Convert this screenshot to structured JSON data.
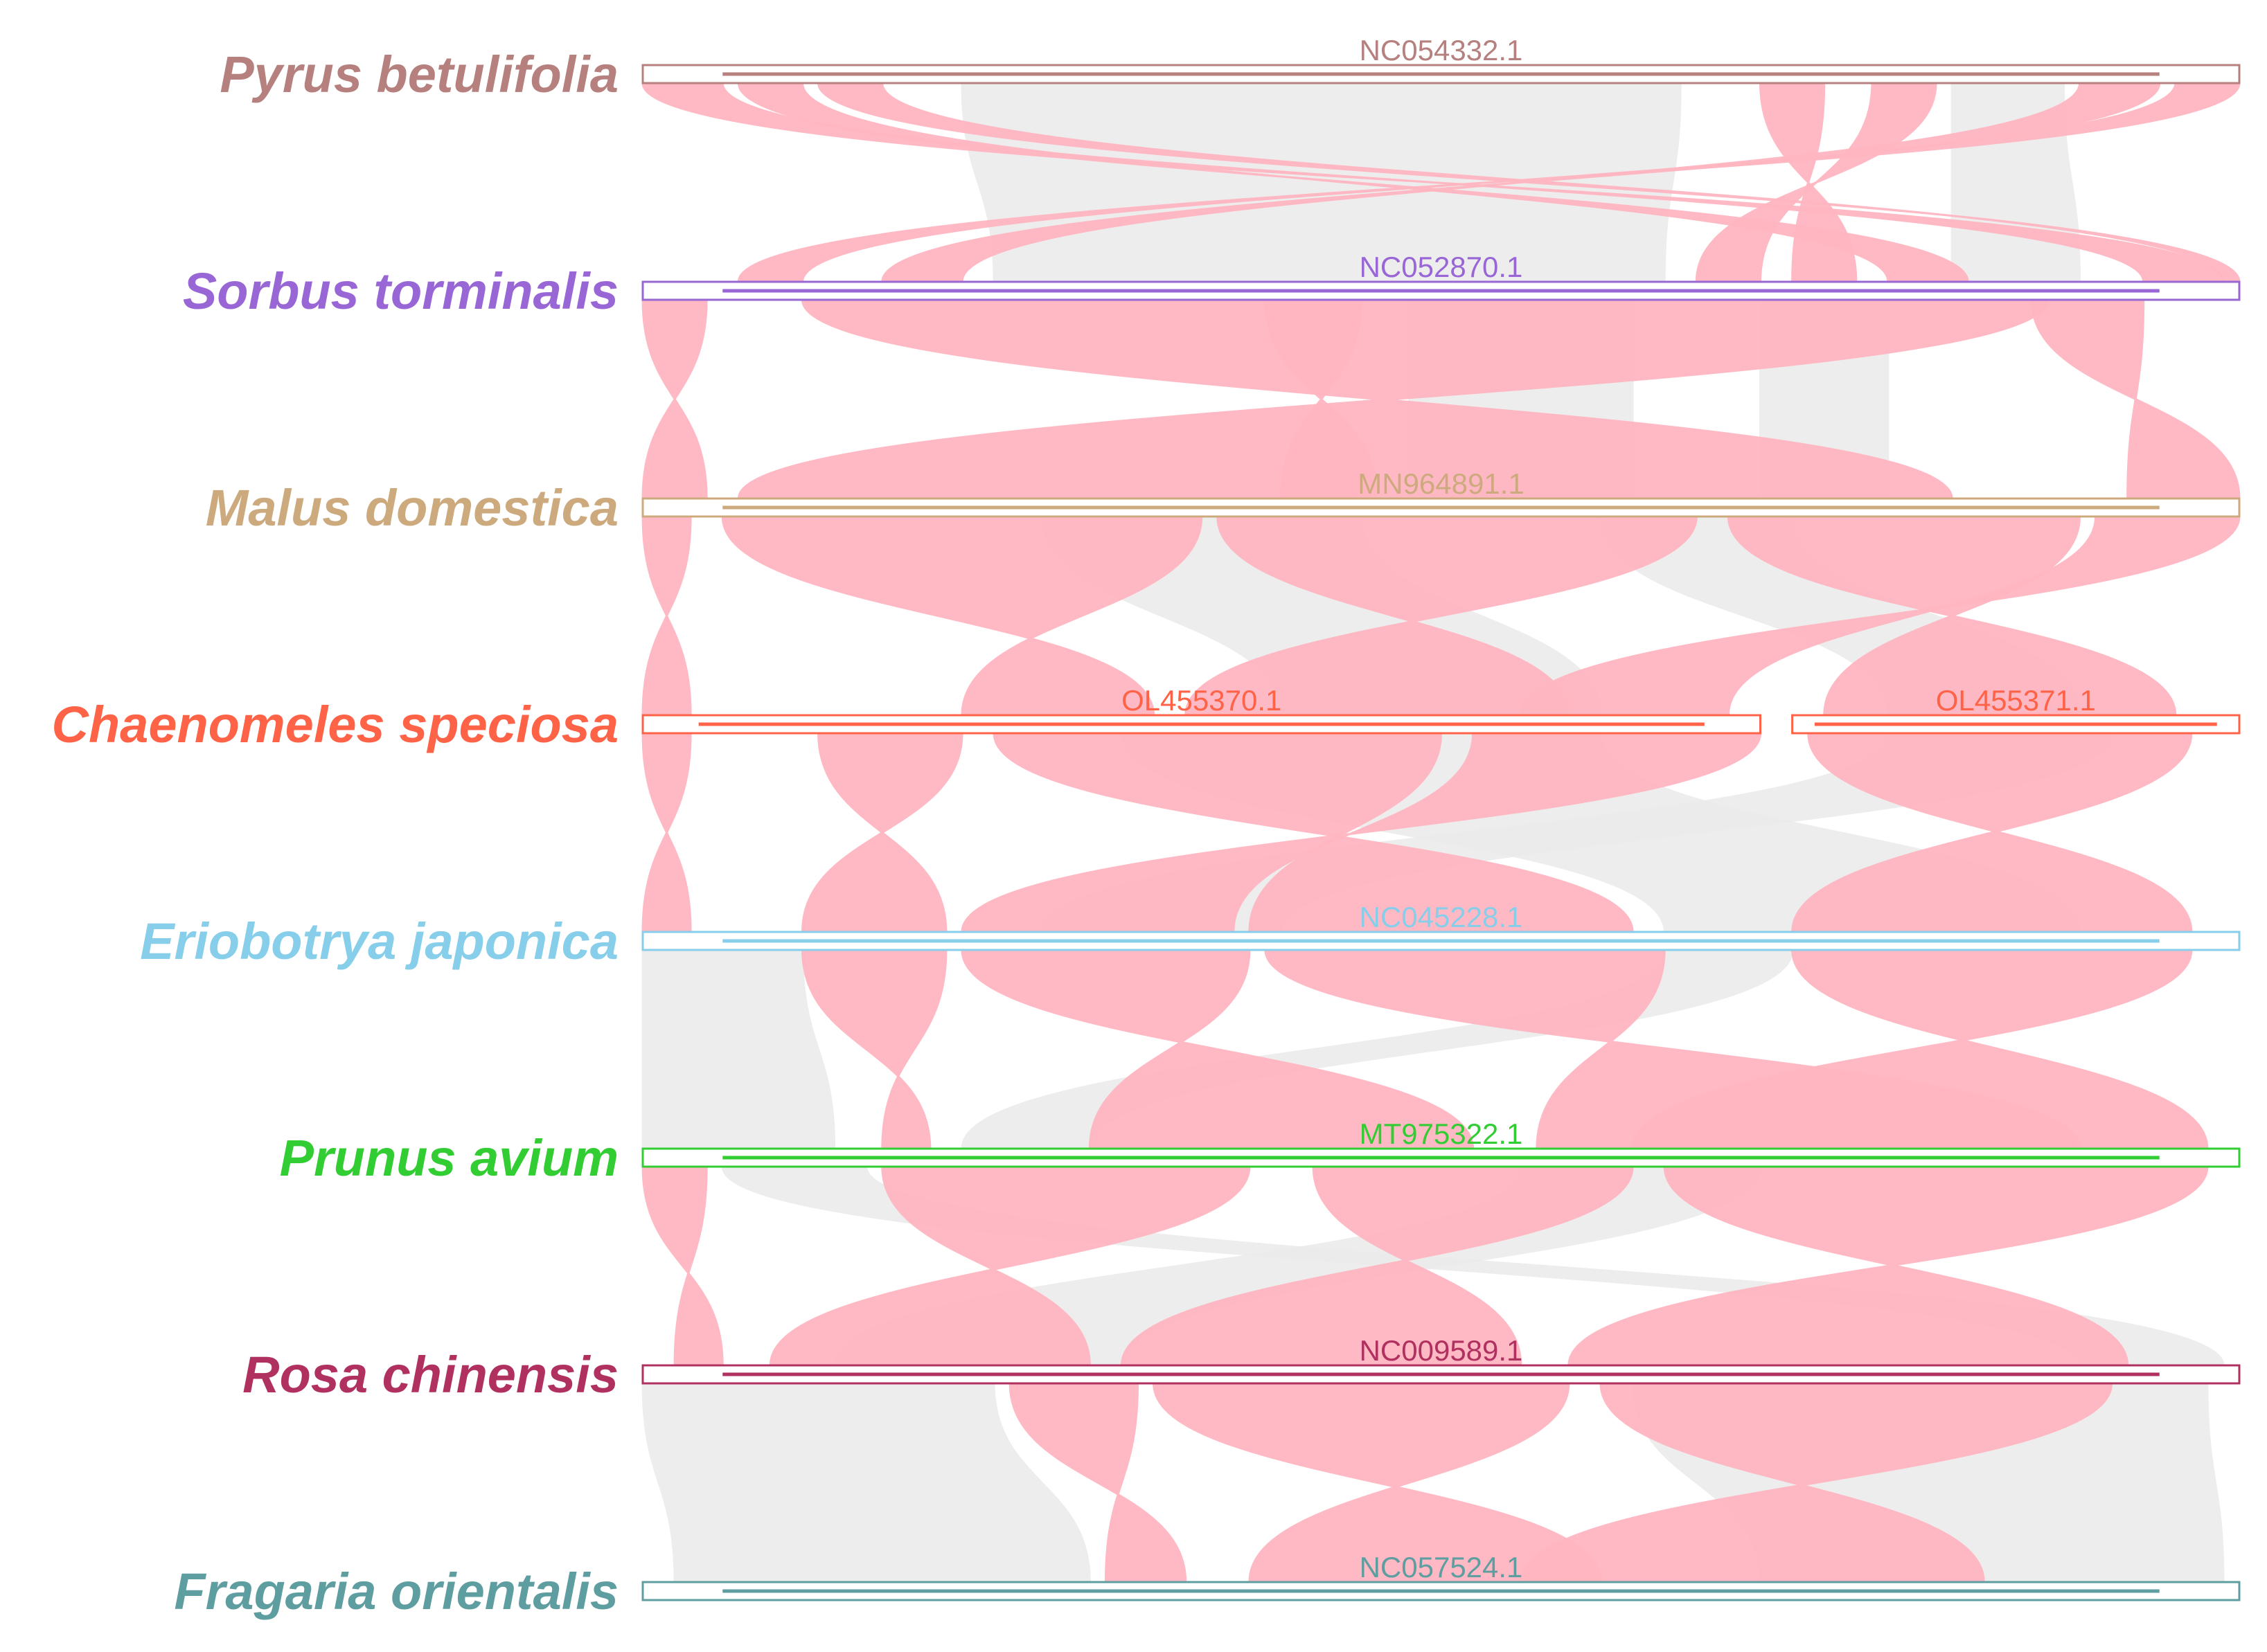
{
  "genomes": [
    {
      "species": "Pyrus betulifolia",
      "color": "#B5807E",
      "chromosomes": [
        {
          "id": "NC054332.1",
          "start": 0,
          "end": 1
        }
      ]
    },
    {
      "species": "Sorbus torminalis",
      "color": "#9966D6",
      "chromosomes": [
        {
          "id": "NC052870.1",
          "start": 0,
          "end": 1
        }
      ]
    },
    {
      "species": "Malus domestica",
      "color": "#CDAA7D",
      "chromosomes": [
        {
          "id": "MN964891.1",
          "start": 0,
          "end": 1
        }
      ]
    },
    {
      "species": "Chaenomeles speciosa",
      "color": "#FF6347",
      "chromosomes": [
        {
          "id": "OL455370.1",
          "start": 0,
          "end": 0.7
        },
        {
          "id": "OL455371.1",
          "start": 0.72,
          "end": 1
        }
      ]
    },
    {
      "species": "Eriobotrya japonica",
      "color": "#87CEEB",
      "chromosomes": [
        {
          "id": "NC045228.1",
          "start": 0,
          "end": 1
        }
      ]
    },
    {
      "species": "Prunus avium",
      "color": "#32CD32",
      "chromosomes": [
        {
          "id": "MT975322.1",
          "start": 0,
          "end": 1
        }
      ]
    },
    {
      "species": "Rosa chinensis",
      "color": "#B03060",
      "chromosomes": [
        {
          "id": "NC009589.1",
          "start": 0,
          "end": 1
        }
      ]
    },
    {
      "species": "Fragaria orientalis",
      "color": "#5F9EA0",
      "chromosomes": [
        {
          "id": "NC057524.1",
          "start": 0,
          "end": 1
        }
      ]
    }
  ],
  "colors": {
    "inverted_block": "#FFB6C1",
    "collinear_block": "#EBEBEB"
  },
  "synteny": [
    {
      "pair": 0,
      "type": "inv",
      "a": [
        0.0,
        0.05
      ],
      "b": [
        0.94,
        0.99
      ]
    },
    {
      "pair": 0,
      "type": "inv",
      "a": [
        0.06,
        0.1
      ],
      "b": [
        0.78,
        0.83
      ]
    },
    {
      "pair": 0,
      "type": "inv",
      "a": [
        0.11,
        0.15
      ],
      "b": [
        0.99,
        1.0
      ]
    },
    {
      "pair": 0,
      "type": "inv",
      "a": [
        0.7,
        0.74
      ],
      "b": [
        0.72,
        0.76
      ]
    },
    {
      "pair": 0,
      "type": "inv",
      "a": [
        0.77,
        0.81
      ],
      "b": [
        0.66,
        0.7
      ]
    },
    {
      "pair": 0,
      "type": "inv",
      "a": [
        0.9,
        0.95
      ],
      "b": [
        0.15,
        0.2
      ]
    },
    {
      "pair": 0,
      "type": "inv",
      "a": [
        0.96,
        1.0
      ],
      "b": [
        0.06,
        0.1
      ]
    },
    {
      "pair": 0,
      "type": "col",
      "a": [
        0.2,
        0.65
      ],
      "b": [
        0.22,
        0.64
      ]
    },
    {
      "pair": 0,
      "type": "col",
      "a": [
        0.82,
        0.89
      ],
      "b": [
        0.82,
        0.9
      ]
    },
    {
      "pair": 1,
      "type": "inv",
      "a": [
        0.0,
        0.04
      ],
      "b": [
        0.0,
        0.04
      ]
    },
    {
      "pair": 1,
      "type": "inv",
      "a": [
        0.39,
        0.45
      ],
      "b": [
        0.4,
        0.46
      ]
    },
    {
      "pair": 1,
      "type": "inv",
      "a": [
        0.87,
        0.94
      ],
      "b": [
        0.93,
        1.0
      ]
    },
    {
      "pair": 1,
      "type": "inv",
      "a": [
        0.1,
        0.88
      ],
      "b": [
        0.06,
        0.82
      ]
    },
    {
      "pair": 1,
      "type": "col",
      "a": [
        0.48,
        0.62
      ],
      "b": [
        0.48,
        0.62
      ]
    },
    {
      "pair": 1,
      "type": "col",
      "a": [
        0.7,
        0.78
      ],
      "b": [
        0.7,
        0.78
      ]
    },
    {
      "pair": 2,
      "type": "inv",
      "a": [
        0.0,
        0.03
      ],
      "b": [
        0.0,
        0.03
      ]
    },
    {
      "pair": 2,
      "type": "inv",
      "a": [
        0.05,
        0.35
      ],
      "b": [
        0.2,
        0.32
      ]
    },
    {
      "pair": 2,
      "type": "inv",
      "a": [
        0.36,
        0.66
      ],
      "b": [
        0.34,
        0.58
      ]
    },
    {
      "pair": 2,
      "type": "inv",
      "a": [
        0.68,
        0.9
      ],
      "b": [
        0.74,
        0.96
      ]
    },
    {
      "pair": 2,
      "type": "inv",
      "a": [
        0.91,
        1.0
      ],
      "b": [
        0.55,
        0.68
      ]
    },
    {
      "pair": 2,
      "type": "col",
      "a": [
        0.25,
        0.45
      ],
      "b": [
        0.4,
        0.6
      ]
    },
    {
      "pair": 2,
      "type": "col",
      "a": [
        0.6,
        0.72
      ],
      "b": [
        0.78,
        0.9
      ]
    },
    {
      "pair": 3,
      "type": "inv",
      "a": [
        0.0,
        0.03
      ],
      "b": [
        0.0,
        0.03
      ]
    },
    {
      "pair": 3,
      "type": "inv",
      "a": [
        0.11,
        0.2
      ],
      "b": [
        0.1,
        0.19
      ]
    },
    {
      "pair": 3,
      "type": "inv",
      "a": [
        0.22,
        0.5
      ],
      "b": [
        0.38,
        0.62
      ]
    },
    {
      "pair": 3,
      "type": "inv",
      "a": [
        0.52,
        0.7
      ],
      "b": [
        0.2,
        0.37
      ]
    },
    {
      "pair": 3,
      "type": "inv",
      "a": [
        0.73,
        0.97
      ],
      "b": [
        0.72,
        0.97
      ]
    },
    {
      "pair": 3,
      "type": "col",
      "a": [
        0.3,
        0.6
      ],
      "b": [
        0.64,
        0.9
      ]
    },
    {
      "pair": 3,
      "type": "col",
      "a": [
        0.78,
        0.92
      ],
      "b": [
        0.25,
        0.4
      ]
    },
    {
      "pair": 4,
      "type": "inv",
      "a": [
        0.1,
        0.19
      ],
      "b": [
        0.15,
        0.18
      ]
    },
    {
      "pair": 4,
      "type": "inv",
      "a": [
        0.2,
        0.38
      ],
      "b": [
        0.28,
        0.52
      ]
    },
    {
      "pair": 4,
      "type": "inv",
      "a": [
        0.39,
        0.64
      ],
      "b": [
        0.56,
        0.9
      ]
    },
    {
      "pair": 4,
      "type": "inv",
      "a": [
        0.72,
        0.97
      ],
      "b": [
        0.62,
        0.98
      ]
    },
    {
      "pair": 4,
      "type": "col",
      "a": [
        0.0,
        0.1
      ],
      "b": [
        0.0,
        0.12
      ]
    },
    {
      "pair": 4,
      "type": "col",
      "a": [
        0.64,
        0.72
      ],
      "b": [
        0.2,
        0.28
      ]
    },
    {
      "pair": 5,
      "type": "inv",
      "a": [
        0.0,
        0.04
      ],
      "b": [
        0.02,
        0.05
      ]
    },
    {
      "pair": 5,
      "type": "inv",
      "a": [
        0.15,
        0.38
      ],
      "b": [
        0.08,
        0.28
      ]
    },
    {
      "pair": 5,
      "type": "inv",
      "a": [
        0.42,
        0.62
      ],
      "b": [
        0.3,
        0.55
      ]
    },
    {
      "pair": 5,
      "type": "inv",
      "a": [
        0.64,
        0.98
      ],
      "b": [
        0.58,
        0.93
      ]
    },
    {
      "pair": 5,
      "type": "col",
      "a": [
        0.05,
        0.14
      ],
      "b": [
        0.9,
        0.99
      ]
    },
    {
      "pair": 5,
      "type": "col",
      "a": [
        0.55,
        0.7
      ],
      "b": [
        0.12,
        0.3
      ]
    },
    {
      "pair": 6,
      "type": "inv",
      "a": [
        0.23,
        0.31
      ],
      "b": [
        0.29,
        0.34
      ]
    },
    {
      "pair": 6,
      "type": "inv",
      "a": [
        0.32,
        0.58
      ],
      "b": [
        0.38,
        0.6
      ]
    },
    {
      "pair": 6,
      "type": "inv",
      "a": [
        0.6,
        0.92
      ],
      "b": [
        0.55,
        0.84
      ]
    },
    {
      "pair": 6,
      "type": "col",
      "a": [
        0.0,
        0.22
      ],
      "b": [
        0.02,
        0.28
      ]
    },
    {
      "pair": 6,
      "type": "col",
      "a": [
        0.62,
        0.98
      ],
      "b": [
        0.7,
        0.99
      ]
    }
  ]
}
